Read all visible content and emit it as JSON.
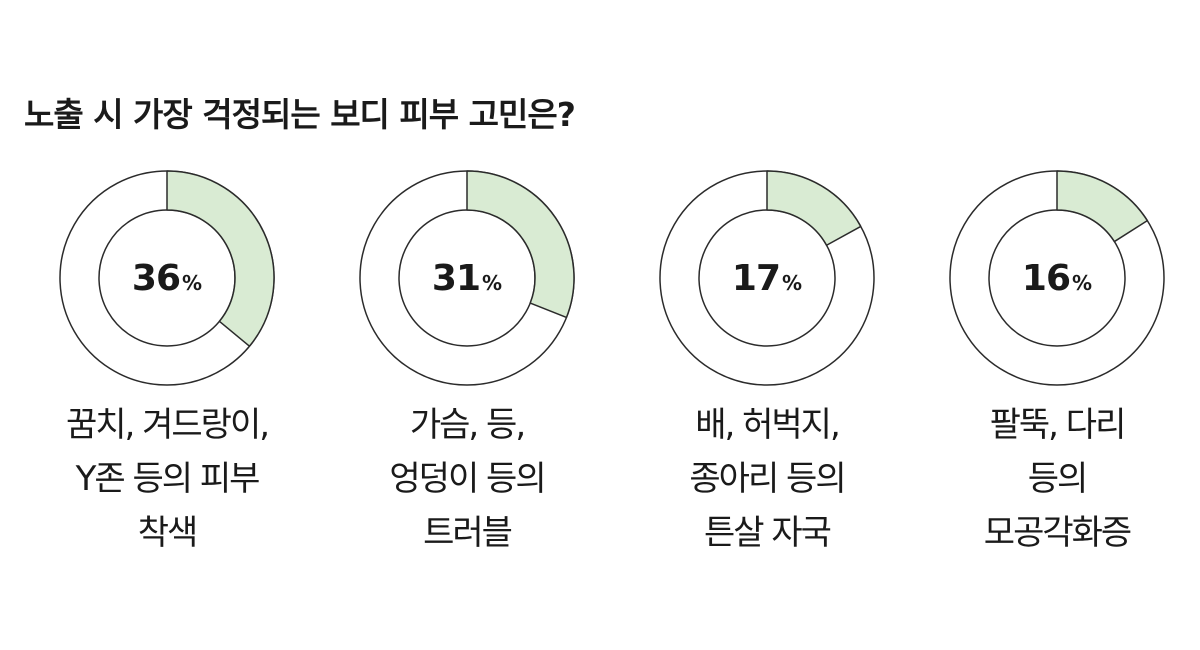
{
  "title": "노출 시 가장 걱정되는 보디 피부 고민은?",
  "colors": {
    "fill": "#d9ebd3",
    "stroke": "#2b2b2b",
    "background": "#ffffff"
  },
  "chart_data": {
    "type": "pie",
    "style": "donut",
    "unit": "%",
    "categories": [
      [
        "꿈치, 겨드랑이,",
        "Y존 등의 피부",
        "착색"
      ],
      [
        "가슴, 등,",
        "엉덩이 등의",
        "트러블"
      ],
      [
        "배, 허벅지,",
        "종아리 등의",
        "튼살 자국"
      ],
      [
        "팔뚝, 다리",
        "등의",
        "모공각화증"
      ]
    ],
    "values": [
      36,
      31,
      17,
      16
    ]
  }
}
